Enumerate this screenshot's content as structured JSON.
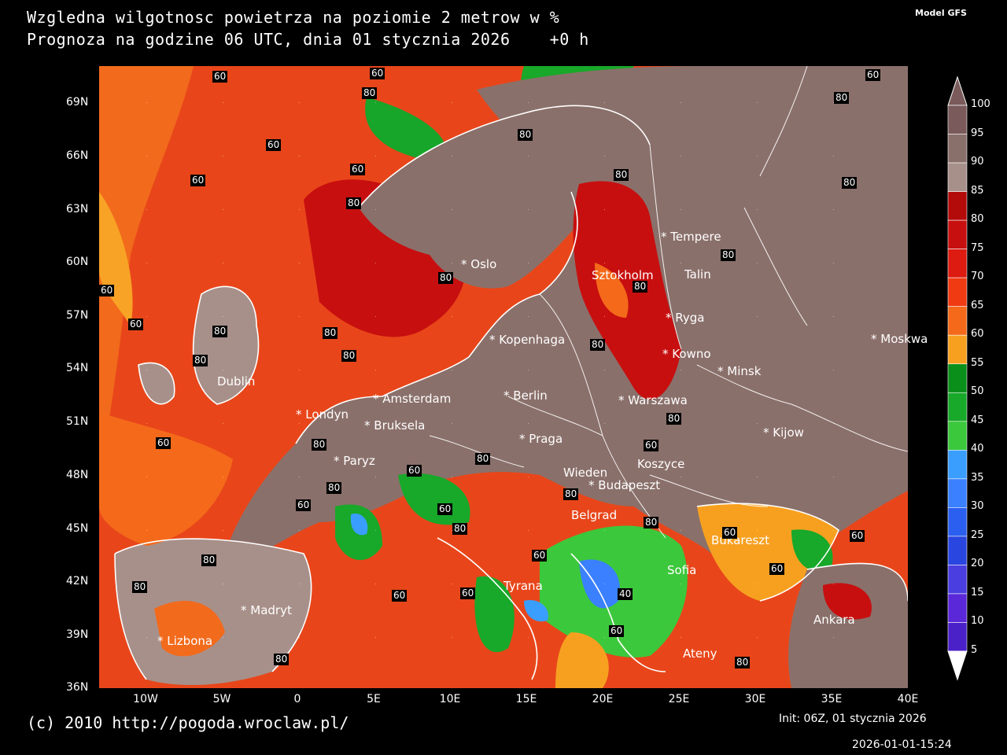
{
  "title_line1": "Wzgledna wilgotnosc powietrza na poziomie 2 metrow w %",
  "title_line2": "Prognoza na godzine 06 UTC, dnia 01 stycznia 2026    +0 h",
  "model": "Model GFS",
  "copyright": "(c) 2010 http://pogoda.wroclaw.pl/",
  "init": "Init: 06Z, 01 stycznia 2026",
  "timestamp": "2026-01-01-15:24",
  "lat_labels": [
    "69N",
    "66N",
    "63N",
    "60N",
    "57N",
    "54N",
    "51N",
    "48N",
    "45N",
    "42N",
    "39N",
    "36N"
  ],
  "lon_labels": [
    "10W",
    "5W",
    "0",
    "5E",
    "10E",
    "15E",
    "20E",
    "25E",
    "30E",
    "35E",
    "40E"
  ],
  "cities": [
    {
      "name": "Oslo"
    },
    {
      "name": "Sztokholm"
    },
    {
      "name": "Tempere"
    },
    {
      "name": "Talin"
    },
    {
      "name": "Ryga"
    },
    {
      "name": "Kopenhaga"
    },
    {
      "name": "Kowno"
    },
    {
      "name": "Minsk"
    },
    {
      "name": "Moskwa"
    },
    {
      "name": "Dublin"
    },
    {
      "name": "Amsterdam"
    },
    {
      "name": "Berlin"
    },
    {
      "name": "Londyn"
    },
    {
      "name": "Warszawa"
    },
    {
      "name": "Bruksela"
    },
    {
      "name": "Kijow"
    },
    {
      "name": "Praga"
    },
    {
      "name": "Paryz"
    },
    {
      "name": "Koszyce"
    },
    {
      "name": "Wieden"
    },
    {
      "name": "Budapeszt"
    },
    {
      "name": "Belgrad"
    },
    {
      "name": "Bukareszt"
    },
    {
      "name": "Sofia"
    },
    {
      "name": "Tyrana"
    },
    {
      "name": "Madryt"
    },
    {
      "name": "Lizbona"
    },
    {
      "name": "Ateny"
    },
    {
      "name": "Ankara"
    }
  ],
  "contour_labels": [
    "60",
    "60",
    "80",
    "60",
    "60",
    "80",
    "80",
    "60",
    "80",
    "80",
    "60",
    "80",
    "80",
    "60",
    "80",
    "80",
    "80",
    "80",
    "80",
    "60",
    "80",
    "60",
    "80",
    "60",
    "60",
    "80",
    "60",
    "80",
    "80",
    "80",
    "80",
    "60",
    "80",
    "60",
    "60",
    "60",
    "80",
    "80",
    "60",
    "40",
    "60",
    "80",
    "80",
    "60",
    "60",
    "80"
  ],
  "legend": {
    "ticks": [
      "100",
      "95",
      "90",
      "85",
      "80",
      "75",
      "70",
      "65",
      "60",
      "55",
      "50",
      "45",
      "40",
      "35",
      "30",
      "25",
      "20",
      "15",
      "10",
      "5"
    ],
    "colors": [
      "#7a5a5a",
      "#8a706b",
      "#a8908a",
      "#b30a0a",
      "#c80f0f",
      "#dd1b10",
      "#f03a12",
      "#f46a1a",
      "#f7a020",
      "#0a8f1a",
      "#18a82a",
      "#3cc83c",
      "#3a9eff",
      "#3a80ff",
      "#2a5ff0",
      "#2a46e0",
      "#4a3ee0",
      "#5a28d8",
      "#4a20c8"
    ]
  }
}
